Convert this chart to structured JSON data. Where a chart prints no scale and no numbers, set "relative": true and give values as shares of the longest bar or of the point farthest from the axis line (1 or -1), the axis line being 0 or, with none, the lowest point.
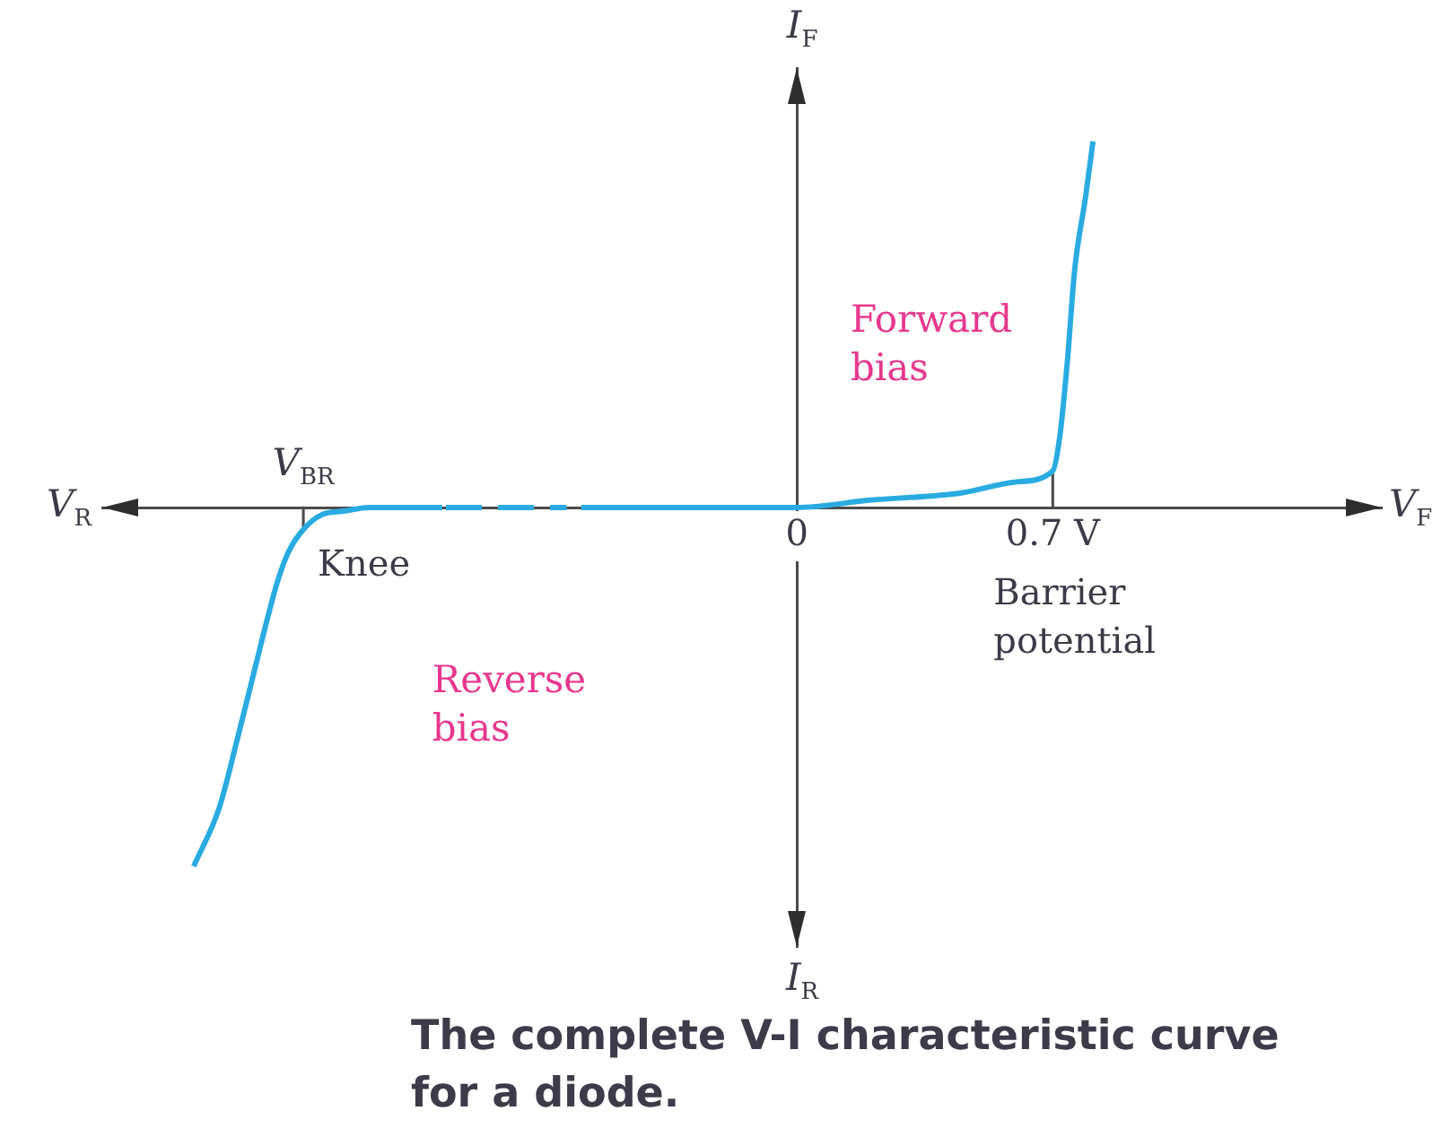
{
  "chart_data": {
    "type": "line",
    "xlabel": "V$_{F}$",
    "ylabel": "I$_{F}$",
    "relative": true,
    "xlim": [
      -1.9,
      1.6
    ],
    "xticks": [
      0,
      {
        "value": 0.7,
        "label": "0.7 V"
      }
    ],
    "series": [
      {
        "color": "#29abe2",
        "x": [
          -1.65,
          -1.58,
          -1.53,
          -1.48,
          -1.45,
          -1.42,
          -1.39,
          -1.35,
          -1.3,
          -1.24,
          -1.17,
          -0.97
        ],
        "values": [
          -0.98,
          -0.82,
          -0.63,
          -0.43,
          -0.31,
          -0.2,
          -0.12,
          -0.06,
          -0.02,
          -0.01,
          0,
          0
        ]
      },
      {
        "color": "#29abe2",
        "line_style": "dashed",
        "x": [
          -0.96,
          -0.63
        ],
        "values": [
          0,
          0
        ]
      },
      {
        "color": "#29abe2",
        "x": [
          -0.59,
          0,
          0.2,
          0.45,
          0.6,
          0.7,
          0.72,
          0.74,
          0.76,
          0.79,
          0.81
        ],
        "values": [
          0,
          0,
          0.02,
          0.04,
          0.07,
          0.1,
          0.2,
          0.4,
          0.65,
          0.85,
          1
        ]
      },
      {
        "color": "#4a4a4a",
        "x": [
          -1.35,
          -1.35
        ],
        "values": [
          0,
          -0.06
        ]
      },
      {
        "color": "#4a4a4a",
        "x": [
          0.7,
          0.7
        ],
        "values": [
          0,
          0.1
        ]
      }
    ],
    "annotations": [
      "V$_{R}$",
      "I$_{R}$",
      {
        "text": "V$_{BR}$",
        "x": -1.35,
        "y": 0
      },
      {
        "text": "Knee",
        "x": -1.35,
        "y": -0.06
      },
      "Barrier potential",
      "Forward bias",
      "Reverse bias",
      "The complete V-I characteristic curve for a diode."
    ]
  }
}
